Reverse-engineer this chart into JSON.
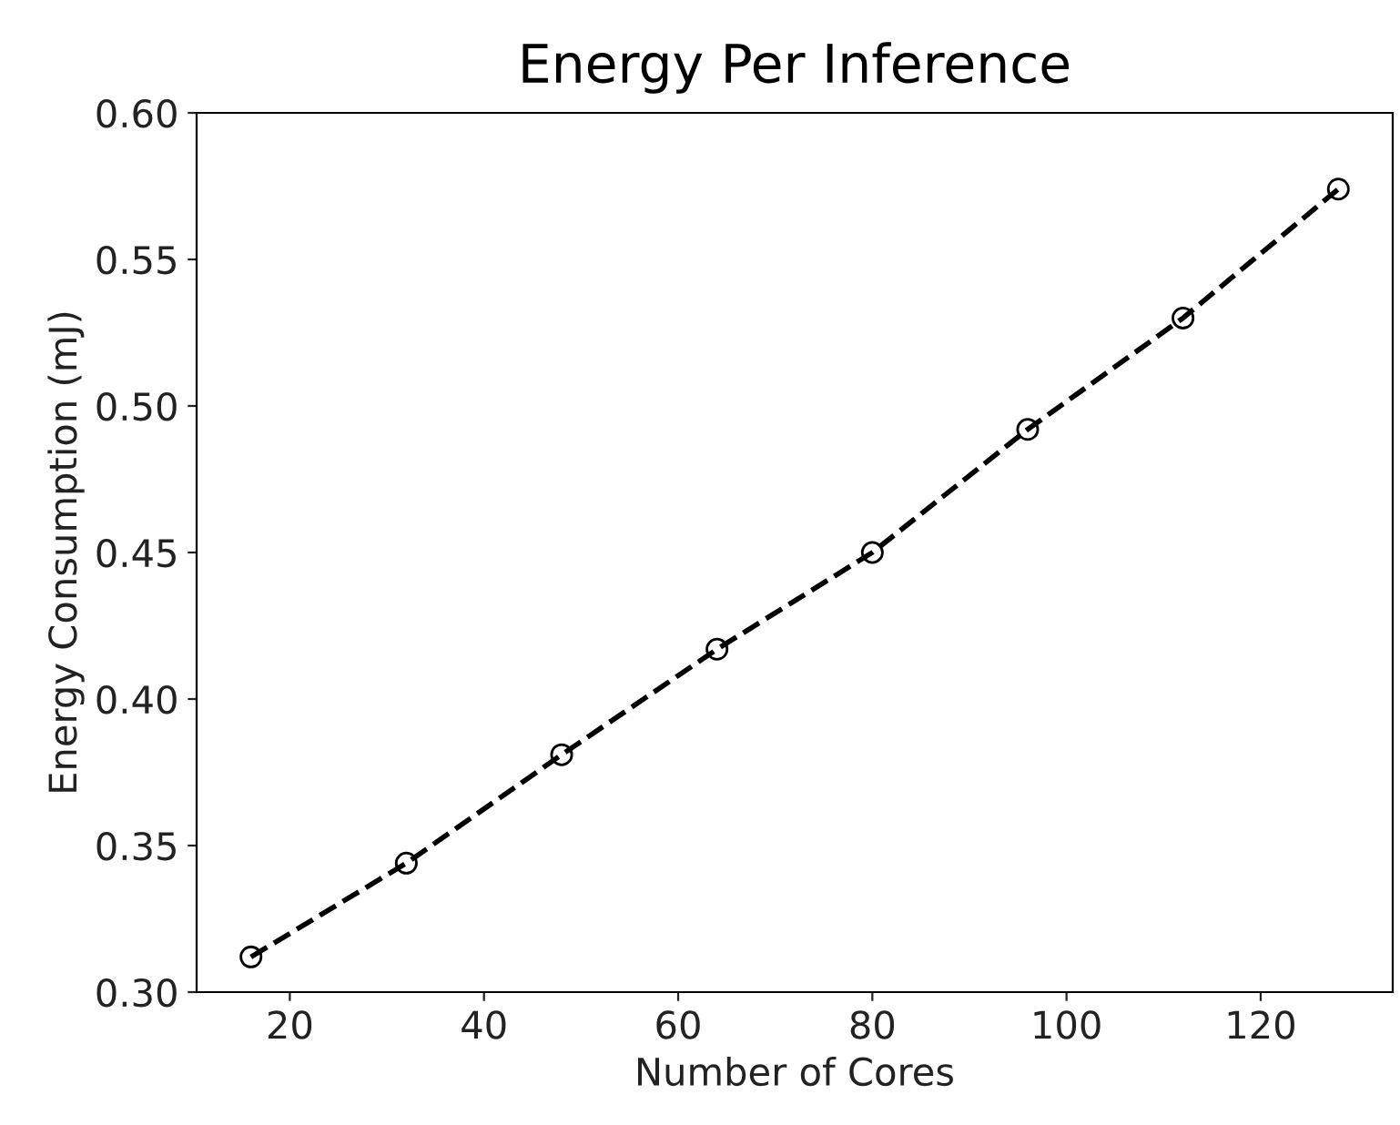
{
  "chart_data": {
    "type": "line",
    "title": "Energy Per Inference",
    "xlabel": "Number of Cores",
    "ylabel": "Energy Consumption (mJ)",
    "x": [
      16,
      32,
      48,
      64,
      80,
      96,
      112,
      128
    ],
    "series": [
      {
        "color": "#000000",
        "values": [
          0.312,
          0.344,
          0.381,
          0.417,
          0.45,
          0.492,
          0.53,
          0.574
        ]
      }
    ],
    "xlim": [
      10.4,
      133.6
    ],
    "xticks": [
      20,
      40,
      60,
      80,
      100,
      120
    ],
    "ylim": [
      0.3,
      0.6
    ],
    "yticks": [
      {
        "value": 0.3,
        "label": "0.30"
      },
      {
        "value": 0.35,
        "label": "0.35"
      },
      {
        "value": 0.4,
        "label": "0.40"
      },
      {
        "value": 0.45,
        "label": "0.45"
      },
      {
        "value": 0.5,
        "label": "0.50"
      },
      {
        "value": 0.55,
        "label": "0.55"
      },
      {
        "value": 0.6,
        "label": "0.60"
      }
    ],
    "marker": "circle",
    "line_style": "dashed",
    "grid": false,
    "legend": false
  }
}
